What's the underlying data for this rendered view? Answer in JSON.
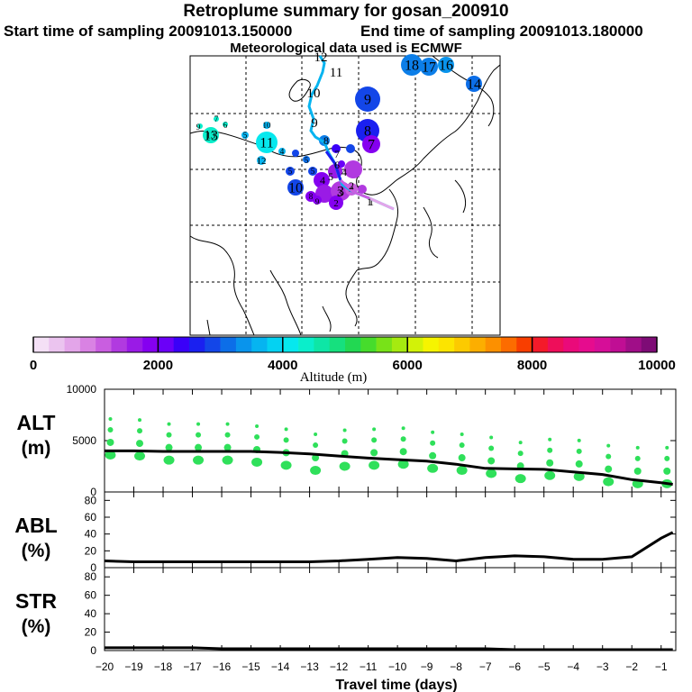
{
  "header": {
    "title": "Retroplume summary for gosan_200910",
    "start_label": "Start time of sampling 20091013.150000",
    "end_label": "End time of sampling 20091013.180000",
    "met_label": "Meteorological data used is ECMWF"
  },
  "colorbar": {
    "xlabel": "Altitude  (m)",
    "ticks": [
      "0",
      "2000",
      "4000",
      "6000",
      "8000",
      "10000"
    ],
    "colors": [
      "#f4e0f6",
      "#ebc4ef",
      "#e3a5e9",
      "#d982e3",
      "#c95ee0",
      "#b13ae0",
      "#9a1be6",
      "#8500f0",
      "#6b00f8",
      "#3a00f8",
      "#1a20f0",
      "#1346e8",
      "#0c6ee8",
      "#0994ec",
      "#06b4f0",
      "#04d2f2",
      "#06e8ee",
      "#0aeecb",
      "#0ee6a6",
      "#16e07e",
      "#22d852",
      "#46dc2c",
      "#78e218",
      "#a6ea10",
      "#d2f208",
      "#f6f400",
      "#fce400",
      "#fcca00",
      "#fcae00",
      "#fc9000",
      "#fc6c00",
      "#f83e00",
      "#f41a2a",
      "#ee0e5a",
      "#ea0a7a",
      "#e60c8e",
      "#d60e98",
      "#c00e94",
      "#a00e88",
      "#7e0c76"
    ]
  },
  "map": {
    "trajectory_labels": [
      "12",
      "11",
      "10",
      "9",
      "8",
      "7",
      "6",
      "5",
      "4",
      "3",
      "2",
      "1"
    ],
    "plume_labels": [
      "18",
      "17",
      "16",
      "14",
      "9",
      "8",
      "7",
      "6",
      "11",
      "10",
      "13",
      "12",
      "5",
      "4",
      "3",
      "2",
      "1"
    ]
  },
  "chart_data": [
    {
      "type": "line+scatter",
      "panel_label": [
        "ALT",
        "(m)"
      ],
      "x": [
        -20.0,
        -19.0,
        -18.0,
        -17.0,
        -16.0,
        -15.0,
        -14.0,
        -13.0,
        -12.0,
        -11.0,
        -10.0,
        -9.0,
        -8.0,
        -7.0,
        -6.0,
        -5.0,
        -4.0,
        -3.0,
        -2.0,
        -1.0,
        -0.6
      ],
      "median": [
        4000,
        4000,
        3950,
        3950,
        3950,
        3950,
        3850,
        3700,
        3500,
        3300,
        3150,
        3000,
        2700,
        2300,
        2250,
        2200,
        1950,
        1700,
        1200,
        900,
        750
      ],
      "scatter_x": [
        -19.8,
        -18.8,
        -17.8,
        -16.8,
        -15.8,
        -14.8,
        -13.8,
        -12.8,
        -11.8,
        -10.8,
        -9.8,
        -8.8,
        -7.8,
        -6.8,
        -5.8,
        -4.8,
        -3.8,
        -2.8,
        -1.8,
        -0.8
      ],
      "scatter_y": [
        3600,
        3500,
        3100,
        3100,
        3100,
        2900,
        2600,
        2100,
        2500,
        2600,
        2700,
        2300,
        2100,
        1800,
        1300,
        1600,
        1500,
        1000,
        800,
        800
      ],
      "ylim": [
        0,
        10000
      ],
      "yticks": [
        "0",
        "5000",
        "10000"
      ],
      "color_scatter": "#2fe05a"
    },
    {
      "type": "line",
      "panel_label": [
        "ABL",
        "(%)"
      ],
      "x": [
        -20,
        -19,
        -18,
        -17,
        -16,
        -15,
        -14,
        -13,
        -12,
        -11,
        -10,
        -9,
        -8,
        -7,
        -6,
        -5,
        -4,
        -3,
        -2,
        -1,
        -0.6
      ],
      "values": [
        8,
        7,
        7,
        7,
        7,
        7,
        7,
        7,
        8,
        10,
        12,
        11,
        8,
        12,
        14,
        13,
        10,
        10,
        13,
        35,
        42
      ],
      "ylim": [
        0,
        90
      ],
      "yticks": [
        "0",
        "20",
        "40",
        "60",
        "80"
      ]
    },
    {
      "type": "line",
      "panel_label": [
        "STR",
        "(%)"
      ],
      "x": [
        -20,
        -19,
        -18,
        -17,
        -16,
        -15,
        -14,
        -13,
        -12,
        -11,
        -10,
        -9,
        -8,
        -7,
        -6,
        -5,
        -4,
        -3,
        -2,
        -1,
        -0.6
      ],
      "values": [
        3,
        3,
        3,
        3,
        2,
        2,
        2,
        2,
        2,
        2,
        2,
        2,
        2,
        2,
        1,
        1,
        1,
        1,
        1,
        1,
        1
      ],
      "ylim": [
        0,
        90
      ],
      "yticks": [
        "0",
        "20",
        "40",
        "60",
        "80"
      ]
    }
  ],
  "xaxis": {
    "label": "Travel time (days)",
    "ticks": [
      "−20",
      "−19",
      "−18",
      "−17",
      "−16",
      "−15",
      "−14",
      "−13",
      "−12",
      "−11",
      "−10",
      "−9",
      "−8",
      "−7",
      "−6",
      "−5",
      "−4",
      "−3",
      "−2",
      "−1"
    ]
  }
}
